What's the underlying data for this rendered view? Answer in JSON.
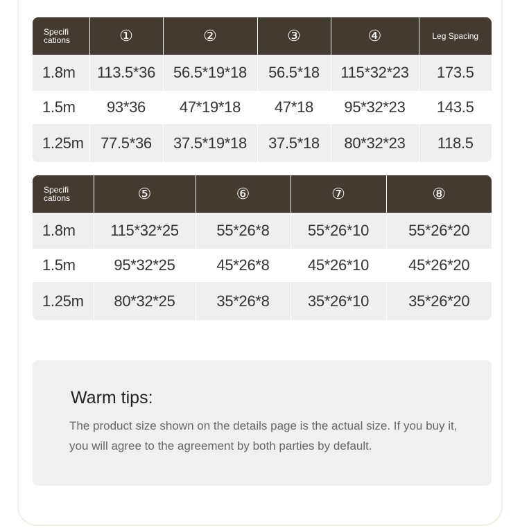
{
  "table1": {
    "headers": [
      "Specifi cations",
      "①",
      "②",
      "③",
      "④",
      "Leg Spacing"
    ],
    "rows": [
      [
        "1.8m",
        "113.5*36",
        "56.5*19*18",
        "56.5*18",
        "115*32*23",
        "173.5"
      ],
      [
        "1.5m",
        "93*36",
        "47*19*18",
        "47*18",
        "95*32*23",
        "143.5"
      ],
      [
        "1.25m",
        "77.5*36",
        "37.5*19*18",
        "37.5*18",
        "80*32*23",
        "118.5"
      ]
    ]
  },
  "table2": {
    "headers": [
      "Specifi cations",
      "⑤",
      "⑥",
      "⑦",
      "⑧"
    ],
    "rows": [
      [
        "1.8m",
        "115*32*25",
        "55*26*8",
        "55*26*10",
        "55*26*20"
      ],
      [
        "1.5m",
        "95*32*25",
        "45*26*8",
        "45*26*10",
        "45*26*20"
      ],
      [
        "1.25m",
        "80*32*25",
        "35*26*8",
        "35*26*10",
        "35*26*20"
      ]
    ]
  },
  "tips": {
    "title": "Warm tips:",
    "text": "The product size shown on the details page is the actual size. If you buy it, you will agree to the agreement by both parties by default."
  },
  "colors": {
    "header_bg": "#453a30",
    "row_alt": "#efefef",
    "tips_bg": "#f0f0f0"
  }
}
